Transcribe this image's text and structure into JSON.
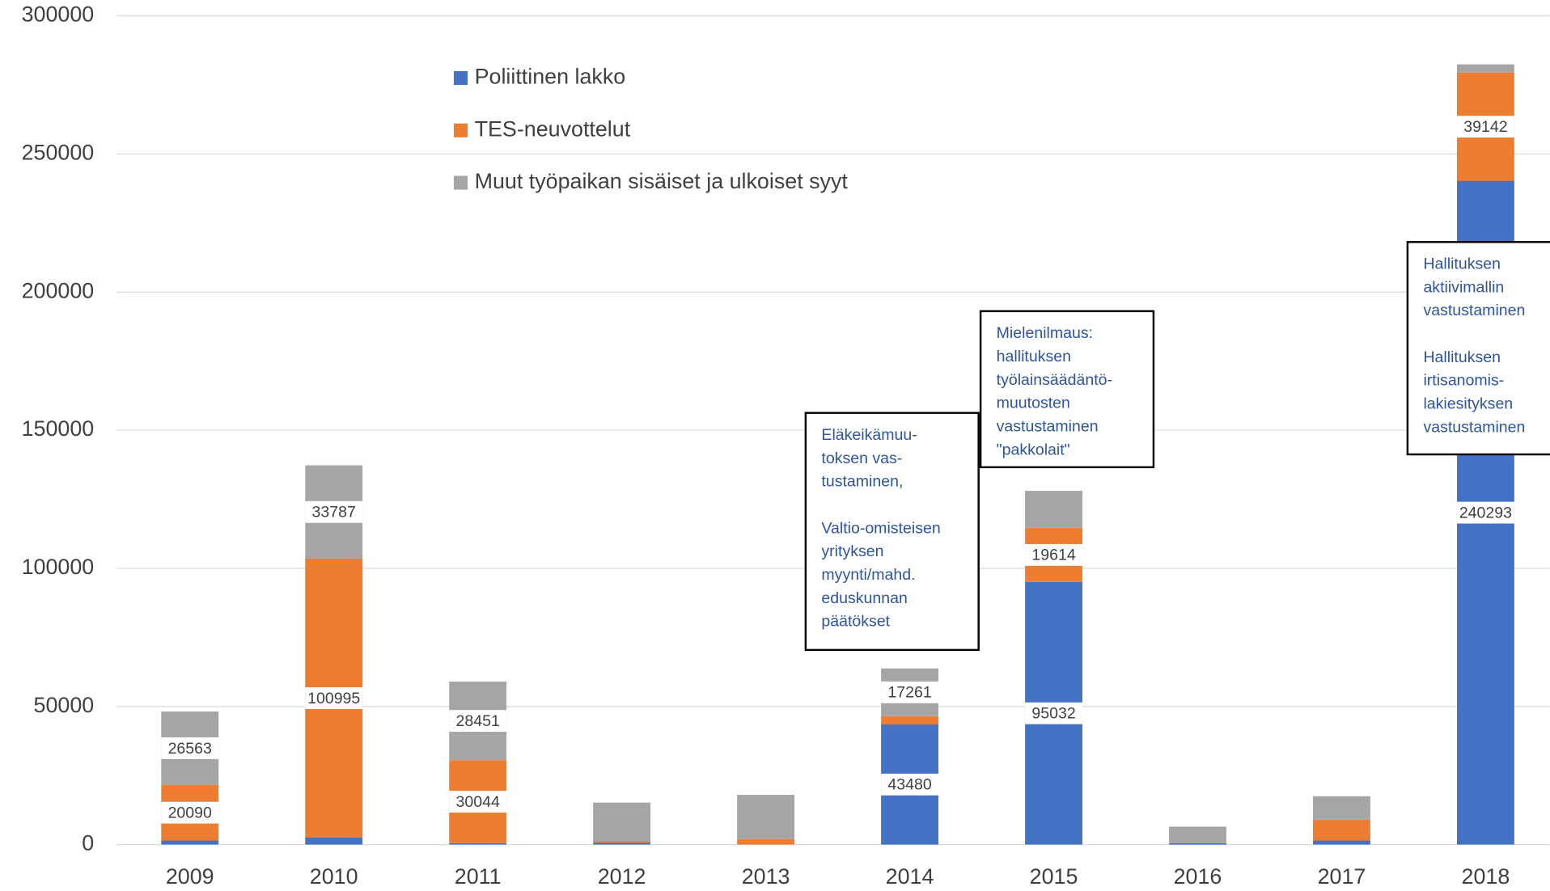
{
  "chart_data": {
    "type": "bar",
    "stacked": true,
    "categories": [
      "2009",
      "2010",
      "2011",
      "2012",
      "2013",
      "2014",
      "2015",
      "2016",
      "2017",
      "2018"
    ],
    "series": [
      {
        "name": "Poliittinen lakko",
        "color": "#4472c4",
        "values": [
          1500,
          2500,
          500,
          700,
          0,
          43480,
          95032,
          500,
          1500,
          240293
        ],
        "value_labels": [
          null,
          null,
          null,
          null,
          null,
          "43480",
          "95032",
          null,
          null,
          "240293"
        ]
      },
      {
        "name": "TES-neuvottelut",
        "color": "#ed7d31",
        "values": [
          20090,
          100995,
          30044,
          500,
          2000,
          3000,
          19614,
          0,
          7500,
          39142
        ],
        "value_labels": [
          "20090",
          "100995",
          "30044",
          null,
          null,
          null,
          "19614",
          null,
          null,
          "39142"
        ]
      },
      {
        "name": "Muut työpaikan sisäiset ja ulkoiset syyt",
        "color": "#a5a5a5",
        "values": [
          26563,
          33787,
          28451,
          14000,
          16000,
          17261,
          13400,
          6000,
          8500,
          3000
        ],
        "value_labels": [
          "26563",
          "33787",
          "28451",
          null,
          null,
          "17261",
          null,
          null,
          null,
          null
        ]
      }
    ],
    "ylim": [
      0,
      300000
    ],
    "yticks": [
      0,
      50000,
      100000,
      150000,
      200000,
      250000,
      300000
    ],
    "grid": true,
    "legend": "upper left",
    "annotations": [
      {
        "paragraphs": [
          [
            "Eläkeikämuu-",
            "toksen vas-",
            "tustaminen,"
          ],
          [
            "Valtio-omisteisen",
            "yrityksen",
            "myynti/mahd.",
            "eduskunnan",
            "päätökset"
          ]
        ]
      },
      {
        "paragraphs": [
          [
            "Mielenilmaus:",
            "hallituksen",
            "työlainsäädäntö-",
            "muutosten",
            "vastustaminen",
            "\"pakkolait\""
          ]
        ]
      },
      {
        "paragraphs": [
          [
            "Hallituksen",
            "aktiivimallin",
            "vastustaminen"
          ],
          [
            "Hallituksen",
            "irtisanomis-",
            "lakiesityksen",
            "vastustaminen"
          ]
        ]
      }
    ]
  }
}
